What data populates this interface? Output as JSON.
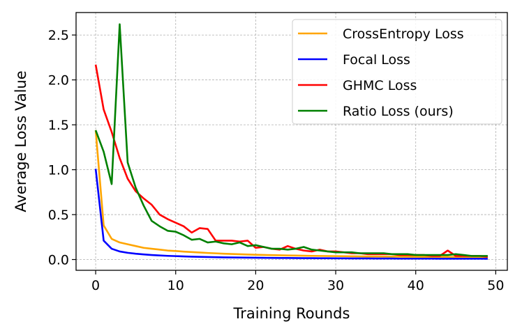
{
  "chart_data": {
    "type": "line",
    "title": "",
    "xlabel": "Training Rounds",
    "ylabel": "Average Loss Value",
    "xlim": [
      -2.45,
      51.45
    ],
    "ylim": [
      -0.12,
      2.75
    ],
    "grid": true,
    "legend_position": "top-right",
    "x_ticks": [
      {
        "value": 0,
        "label": "0"
      },
      {
        "value": 10,
        "label": "10"
      },
      {
        "value": 20,
        "label": "20"
      },
      {
        "value": 30,
        "label": "30"
      },
      {
        "value": 40,
        "label": "40"
      },
      {
        "value": 50,
        "label": "50"
      }
    ],
    "y_ticks": [
      {
        "value": 0.0,
        "label": "0.0"
      },
      {
        "value": 0.5,
        "label": "0.5"
      },
      {
        "value": 1.0,
        "label": "1.0"
      },
      {
        "value": 1.5,
        "label": "1.5"
      },
      {
        "value": 2.0,
        "label": "2.0"
      },
      {
        "value": 2.5,
        "label": "2.5"
      }
    ],
    "x": [
      0,
      1,
      2,
      3,
      4,
      5,
      6,
      7,
      8,
      9,
      10,
      11,
      12,
      13,
      14,
      15,
      16,
      17,
      18,
      19,
      20,
      21,
      22,
      23,
      24,
      25,
      26,
      27,
      28,
      29,
      30,
      31,
      32,
      33,
      34,
      35,
      36,
      37,
      38,
      39,
      40,
      41,
      42,
      43,
      44,
      45,
      46,
      47,
      48,
      49
    ],
    "series": [
      {
        "name": "CrossEntropy Loss",
        "color": "#ffa500",
        "values": [
          1.44,
          0.38,
          0.23,
          0.19,
          0.17,
          0.15,
          0.13,
          0.12,
          0.11,
          0.1,
          0.095,
          0.088,
          0.083,
          0.078,
          0.073,
          0.069,
          0.065,
          0.062,
          0.059,
          0.056,
          0.053,
          0.051,
          0.049,
          0.047,
          0.045,
          0.044,
          0.042,
          0.041,
          0.04,
          0.039,
          0.038,
          0.037,
          0.036,
          0.035,
          0.034,
          0.034,
          0.033,
          0.032,
          0.032,
          0.031,
          0.031,
          0.03,
          0.03,
          0.029,
          0.029,
          0.028,
          0.028,
          0.028,
          0.027,
          0.027
        ]
      },
      {
        "name": "Focal Loss",
        "color": "#0000ff",
        "values": [
          1.01,
          0.21,
          0.12,
          0.09,
          0.075,
          0.065,
          0.057,
          0.05,
          0.045,
          0.041,
          0.038,
          0.035,
          0.032,
          0.03,
          0.028,
          0.026,
          0.024,
          0.023,
          0.022,
          0.021,
          0.02,
          0.019,
          0.018,
          0.017,
          0.017,
          0.016,
          0.015,
          0.015,
          0.014,
          0.014,
          0.013,
          0.013,
          0.012,
          0.012,
          0.012,
          0.011,
          0.011,
          0.011,
          0.01,
          0.01,
          0.01,
          0.01,
          0.01,
          0.009,
          0.009,
          0.009,
          0.009,
          0.009,
          0.009,
          0.008
        ]
      },
      {
        "name": "GHMC Loss",
        "color": "#ff0000",
        "values": [
          2.17,
          1.67,
          1.42,
          1.13,
          0.9,
          0.76,
          0.68,
          0.61,
          0.5,
          0.45,
          0.41,
          0.37,
          0.3,
          0.35,
          0.34,
          0.21,
          0.21,
          0.21,
          0.2,
          0.21,
          0.13,
          0.14,
          0.12,
          0.11,
          0.15,
          0.12,
          0.1,
          0.09,
          0.11,
          0.09,
          0.09,
          0.08,
          0.07,
          0.07,
          0.06,
          0.06,
          0.06,
          0.06,
          0.05,
          0.05,
          0.05,
          0.05,
          0.04,
          0.04,
          0.1,
          0.04,
          0.04,
          0.04,
          0.04,
          0.03
        ]
      },
      {
        "name": "Ratio Loss (ours)",
        "color": "#008000",
        "values": [
          1.44,
          1.2,
          0.84,
          2.62,
          1.08,
          0.8,
          0.6,
          0.43,
          0.37,
          0.32,
          0.31,
          0.27,
          0.22,
          0.23,
          0.19,
          0.2,
          0.18,
          0.17,
          0.19,
          0.15,
          0.16,
          0.14,
          0.12,
          0.12,
          0.11,
          0.12,
          0.14,
          0.11,
          0.1,
          0.09,
          0.08,
          0.08,
          0.08,
          0.07,
          0.07,
          0.07,
          0.07,
          0.06,
          0.06,
          0.06,
          0.05,
          0.05,
          0.05,
          0.05,
          0.05,
          0.06,
          0.05,
          0.04,
          0.04,
          0.04
        ]
      }
    ]
  }
}
